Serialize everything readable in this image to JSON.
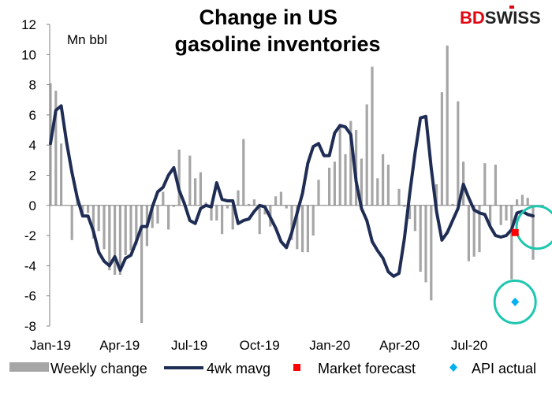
{
  "chart_data": {
    "type": "bar",
    "title": "Change in US\ngasoline inventories",
    "unit_label": "Mn bbl",
    "ylim": [
      -8,
      12
    ],
    "y_ticks": [
      12,
      10,
      8,
      6,
      4,
      2,
      0,
      -2,
      -4,
      -6,
      -8
    ],
    "x_ticks": [
      {
        "label": "Jan-19",
        "week": 0
      },
      {
        "label": "Apr-19",
        "week": 12.9
      },
      {
        "label": "Jul-19",
        "week": 25.9
      },
      {
        "label": "Oct-19",
        "week": 39.0
      },
      {
        "label": "Jan-20",
        "week": 52.1
      },
      {
        "label": "Apr-20",
        "week": 65.1
      },
      {
        "label": "Jul-20",
        "week": 78.1
      }
    ],
    "series": [
      {
        "name": "Weekly change",
        "type": "bar",
        "color": "#a6a6a6",
        "values": [
          8.1,
          7.6,
          4.1,
          0.0,
          -2.3,
          0.5,
          -0.7,
          -0.5,
          -2.2,
          -1.7,
          -2.9,
          -4.3,
          -4.6,
          -4.6,
          -3.3,
          -3.0,
          -2.6,
          -7.8,
          -2.7,
          -1.5,
          -1.2,
          0.9,
          -1.6,
          -0.1,
          3.7,
          0.2,
          3.3,
          1.8,
          2.2,
          0.2,
          -1.0,
          -1.0,
          -1.9,
          -0.2,
          -1.6,
          1.0,
          4.4,
          0.1,
          0.4,
          -1.9,
          -0.6,
          -1.4,
          0.6,
          0.9,
          -0.2,
          -2.3,
          -2.9,
          -3.1,
          -3.1,
          -2.0,
          1.7,
          0.0,
          2.5,
          2.9,
          5.3,
          3.4,
          5.6,
          5.0,
          3.1,
          6.7,
          9.2,
          1.8,
          3.4,
          2.7,
          0.0,
          1.1,
          -0.1,
          -0.9,
          -1.7,
          -4.4,
          -5.1,
          -6.3,
          1.4,
          7.5,
          10.6,
          0.1,
          6.9,
          2.9,
          -3.7,
          -3.4,
          -3.1,
          2.8,
          -1.3,
          2.7,
          -1.3,
          -1.0,
          -4.9,
          0.4,
          0.7,
          0.5,
          -3.6
        ]
      },
      {
        "name": "4wk mavg",
        "type": "line",
        "color": "#1f2d55",
        "values": [
          4.1,
          6.3,
          6.6,
          4.2,
          2.2,
          0.5,
          -0.7,
          -0.7,
          -1.7,
          -3.1,
          -3.7,
          -4.0,
          -3.4,
          -4.3,
          -3.5,
          -3.3,
          -2.4,
          -1.4,
          -1.4,
          -0.1,
          0.9,
          1.2,
          2.0,
          2.5,
          1.0,
          0.1,
          -1.0,
          -1.2,
          -0.2,
          0.0,
          -0.1,
          1.5,
          0.4,
          0.3,
          0.3,
          -1.2,
          -1.0,
          -0.9,
          -0.4,
          0.0,
          -0.1,
          -0.8,
          -1.5,
          -2.4,
          -2.8,
          -1.8,
          -0.5,
          0.8,
          2.8,
          3.9,
          4.1,
          3.3,
          3.3,
          4.8,
          5.3,
          5.2,
          4.7,
          1.6,
          -0.2,
          -1.0,
          -2.4,
          -3.0,
          -3.5,
          -4.4,
          -4.7,
          -4.5,
          -2.2,
          0.8,
          3.5,
          5.8,
          5.9,
          2.5,
          -0.4,
          -2.3,
          -1.8,
          -1.0,
          -0.2,
          1.4,
          0.5,
          -0.3,
          -0.5,
          -0.6,
          -1.4,
          -2.0,
          -2.1,
          -2.0,
          -1.6,
          -0.5,
          -0.4,
          -0.6,
          -0.7
        ]
      },
      {
        "name": "Market forecast",
        "type": "point",
        "marker": "square",
        "color": "#ff0000",
        "week": 89,
        "value": -1.8
      },
      {
        "name": "API actual",
        "type": "point",
        "marker": "diamond",
        "color": "#00b0f0",
        "week": 89,
        "value": -6.4
      }
    ],
    "highlight_color": "#1fc7b0",
    "legend_position": "bottom"
  },
  "brand": {
    "part1": "BD",
    "part2": "SWISS",
    "part1_color": "#e20613",
    "part2_color": "#222222",
    "mark_color": "#e20613"
  }
}
